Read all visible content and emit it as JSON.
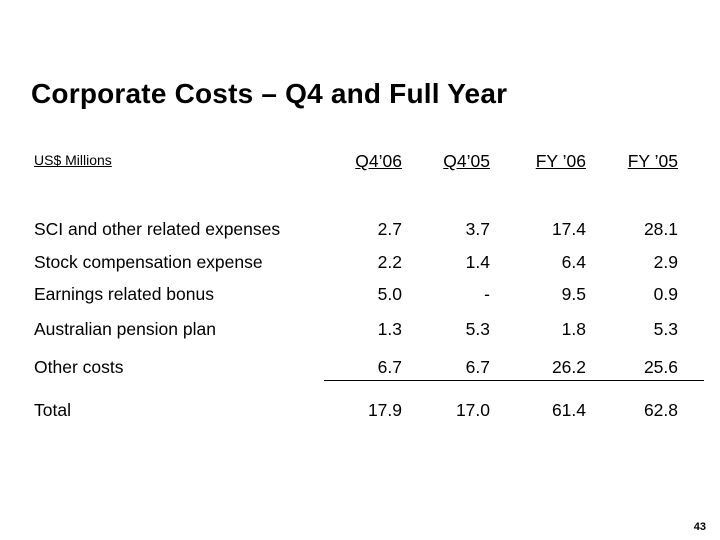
{
  "slide": {
    "title": "Corporate Costs – Q4 and Full Year",
    "units": "US$ Millions",
    "page_number": "43"
  },
  "table": {
    "columns": [
      "Q4’06",
      "Q4’05",
      "FY ’06",
      "FY ’05"
    ],
    "rows": [
      {
        "label": "SCI and other related expenses",
        "values": [
          "2.7",
          "3.7",
          "17.4",
          "28.1"
        ]
      },
      {
        "label": "Stock compensation expense",
        "values": [
          "2.2",
          "1.4",
          "6.4",
          "2.9"
        ]
      },
      {
        "label": "Earnings related bonus",
        "values": [
          "5.0",
          "-",
          "9.5",
          "0.9"
        ]
      },
      {
        "label": "Australian pension plan",
        "values": [
          "1.3",
          "5.3",
          "1.8",
          "5.3"
        ]
      },
      {
        "label": "Other costs",
        "values": [
          "6.7",
          "6.7",
          "26.2",
          "25.6"
        ]
      },
      {
        "label": "Total",
        "values": [
          "17.9",
          "17.0",
          "61.4",
          "62.8"
        ]
      }
    ]
  }
}
